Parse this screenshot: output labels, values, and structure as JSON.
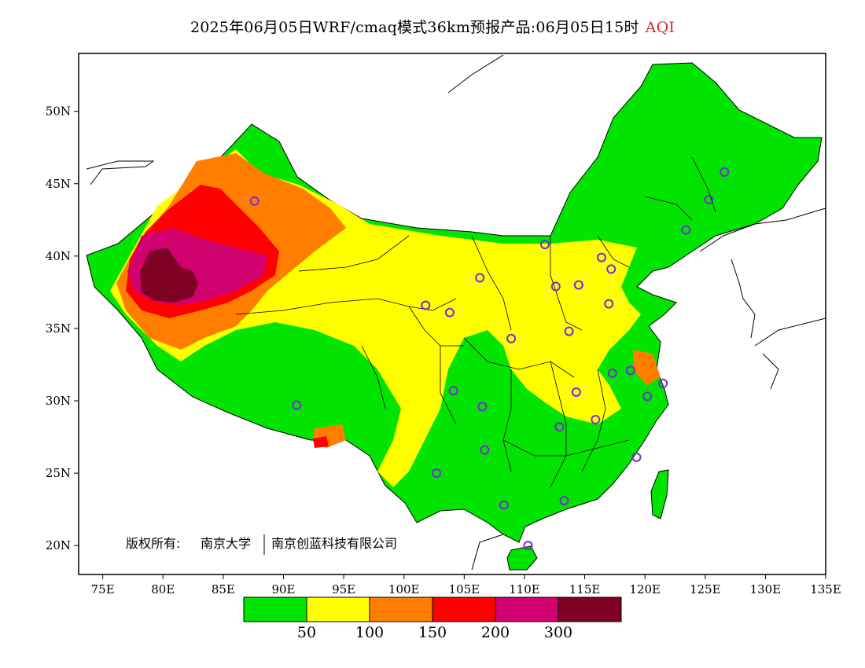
{
  "title": {
    "text": "2025年06月05日WRF/cmaq模式36km预报产品:06月05日15时",
    "variable": "AQI"
  },
  "axes": {
    "x_ticks": [
      "75E",
      "80E",
      "85E",
      "90E",
      "95E",
      "100E",
      "105E",
      "110E",
      "115E",
      "120E",
      "125E",
      "130E",
      "135E"
    ],
    "y_ticks": [
      "50N",
      "45N",
      "40N",
      "35N",
      "30N",
      "25N",
      "20N"
    ],
    "lon_range": [
      73,
      135
    ],
    "lat_range": [
      18,
      54
    ]
  },
  "copyright": {
    "label": "版权所有:",
    "org1": "南京大学",
    "org2": "南京创蓝科技有限公司"
  },
  "legend": {
    "colors": [
      "#00e400",
      "#ffff00",
      "#ff7e00",
      "#ff0000",
      "#d0006e",
      "#7e0023"
    ],
    "thresholds": [
      "50",
      "100",
      "150",
      "200",
      "300"
    ]
  },
  "stations": [
    {
      "lon": 87.6,
      "lat": 43.8
    },
    {
      "lon": 91.1,
      "lat": 29.7
    },
    {
      "lon": 101.8,
      "lat": 36.6
    },
    {
      "lon": 103.8,
      "lat": 36.1
    },
    {
      "lon": 106.3,
      "lat": 38.5
    },
    {
      "lon": 111.7,
      "lat": 40.8
    },
    {
      "lon": 116.4,
      "lat": 39.9
    },
    {
      "lon": 117.2,
      "lat": 39.1
    },
    {
      "lon": 114.5,
      "lat": 38.0
    },
    {
      "lon": 112.6,
      "lat": 37.9
    },
    {
      "lon": 117.0,
      "lat": 36.7
    },
    {
      "lon": 113.7,
      "lat": 34.8
    },
    {
      "lon": 108.9,
      "lat": 34.3
    },
    {
      "lon": 104.1,
      "lat": 30.7
    },
    {
      "lon": 106.5,
      "lat": 29.6
    },
    {
      "lon": 106.7,
      "lat": 26.6
    },
    {
      "lon": 102.7,
      "lat": 25.0
    },
    {
      "lon": 108.3,
      "lat": 22.8
    },
    {
      "lon": 113.3,
      "lat": 23.1
    },
    {
      "lon": 110.3,
      "lat": 20.0
    },
    {
      "lon": 119.3,
      "lat": 26.1
    },
    {
      "lon": 115.9,
      "lat": 28.7
    },
    {
      "lon": 112.9,
      "lat": 28.2
    },
    {
      "lon": 114.3,
      "lat": 30.6
    },
    {
      "lon": 117.3,
      "lat": 31.9
    },
    {
      "lon": 118.8,
      "lat": 32.1
    },
    {
      "lon": 120.2,
      "lat": 30.3
    },
    {
      "lon": 121.5,
      "lat": 31.2
    },
    {
      "lon": 123.4,
      "lat": 41.8
    },
    {
      "lon": 125.3,
      "lat": 43.9
    },
    {
      "lon": 126.6,
      "lat": 45.8
    }
  ]
}
